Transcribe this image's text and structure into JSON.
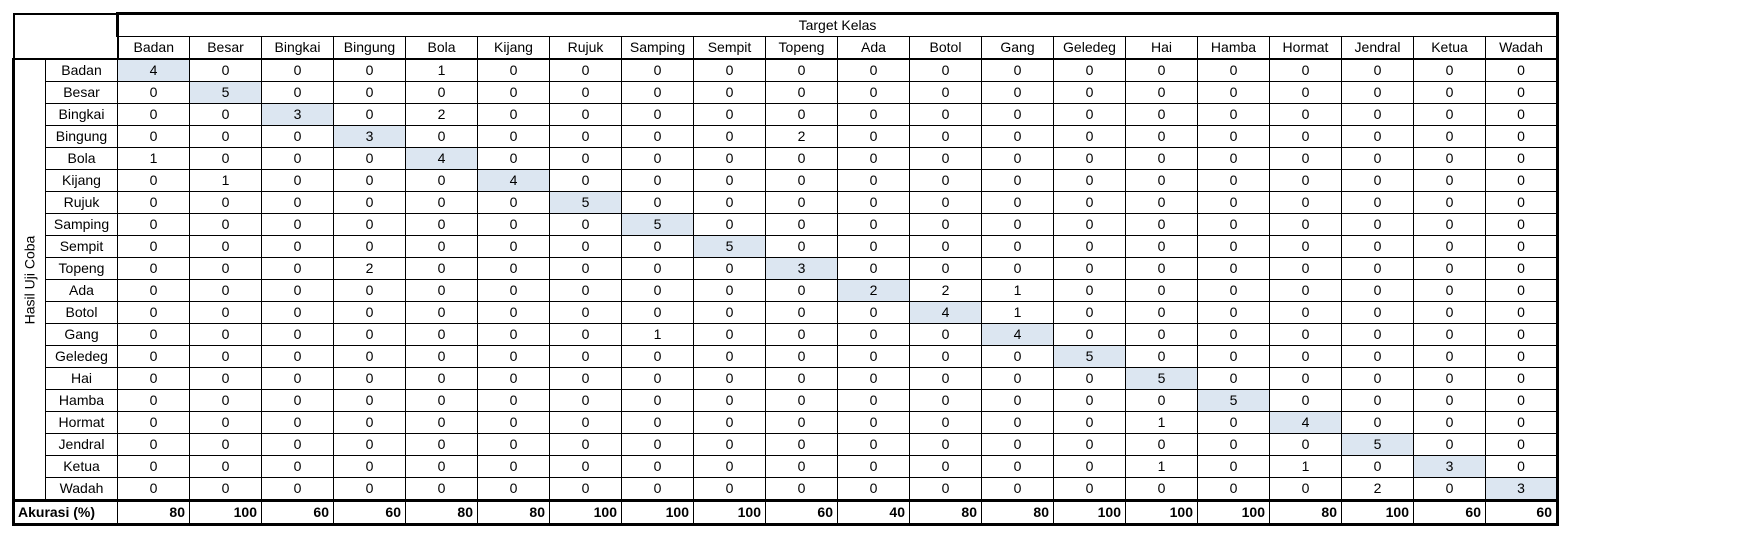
{
  "table": {
    "target_label": "Target Kelas",
    "row_group_label": "Hasil Uji Coba",
    "accuracy_label": "Akurasi (%)",
    "diagonal_color": "#dce6f1",
    "columns": [
      "Badan",
      "Besar",
      "Bingkai",
      "Bingung",
      "Bola",
      "Kijang",
      "Rujuk",
      "Samping",
      "Sempit",
      "Topeng",
      "Ada",
      "Botol",
      "Gang",
      "Geledeg",
      "Hai",
      "Hamba",
      "Hormat",
      "Jendral",
      "Ketua",
      "Wadah"
    ],
    "rows": [
      {
        "label": "Badan",
        "values": [
          "4",
          "0",
          "0",
          "0",
          "1",
          "0",
          "0",
          "0",
          "0",
          "0",
          "0",
          "0",
          "0",
          "0",
          "0",
          "0",
          "0",
          "0",
          "0",
          "0"
        ]
      },
      {
        "label": "Besar",
        "values": [
          "0",
          "5",
          "0",
          "0",
          "0",
          "0",
          "0",
          "0",
          "0",
          "0",
          "0",
          "0",
          "0",
          "0",
          "0",
          "0",
          "0",
          "0",
          "0",
          "0"
        ]
      },
      {
        "label": "Bingkai",
        "values": [
          "0",
          "0",
          "3",
          "0",
          "2",
          "0",
          "0",
          "0",
          "0",
          "0",
          "0",
          "0",
          "0",
          "0",
          "0",
          "0",
          "0",
          "0",
          "0",
          "0"
        ]
      },
      {
        "label": "Bingung",
        "values": [
          "0",
          "0",
          "0",
          "3",
          "0",
          "0",
          "0",
          "0",
          "0",
          "2",
          "0",
          "0",
          "0",
          "0",
          "0",
          "0",
          "0",
          "0",
          "0",
          "0"
        ]
      },
      {
        "label": "Bola",
        "values": [
          "1",
          "0",
          "0",
          "0",
          "4",
          "0",
          "0",
          "0",
          "0",
          "0",
          "0",
          "0",
          "0",
          "0",
          "0",
          "0",
          "0",
          "0",
          "0",
          "0"
        ]
      },
      {
        "label": "Kijang",
        "values": [
          "0",
          "1",
          "0",
          "0",
          "0",
          "4",
          "0",
          "0",
          "0",
          "0",
          "0",
          "0",
          "0",
          "0",
          "0",
          "0",
          "0",
          "0",
          "0",
          "0"
        ]
      },
      {
        "label": "Rujuk",
        "values": [
          "0",
          "0",
          "0",
          "0",
          "0",
          "0",
          "5",
          "0",
          "0",
          "0",
          "0",
          "0",
          "0",
          "0",
          "0",
          "0",
          "0",
          "0",
          "0",
          "0"
        ]
      },
      {
        "label": "Samping",
        "values": [
          "0",
          "0",
          "0",
          "0",
          "0",
          "0",
          "0",
          "5",
          "0",
          "0",
          "0",
          "0",
          "0",
          "0",
          "0",
          "0",
          "0",
          "0",
          "0",
          "0"
        ]
      },
      {
        "label": "Sempit",
        "values": [
          "0",
          "0",
          "0",
          "0",
          "0",
          "0",
          "0",
          "0",
          "5",
          "0",
          "0",
          "0",
          "0",
          "0",
          "0",
          "0",
          "0",
          "0",
          "0",
          "0"
        ]
      },
      {
        "label": "Topeng",
        "values": [
          "0",
          "0",
          "0",
          "2",
          "0",
          "0",
          "0",
          "0",
          "0",
          "3",
          "0",
          "0",
          "0",
          "0",
          "0",
          "0",
          "0",
          "0",
          "0",
          "0"
        ]
      },
      {
        "label": "Ada",
        "values": [
          "0",
          "0",
          "0",
          "0",
          "0",
          "0",
          "0",
          "0",
          "0",
          "0",
          "2",
          "2",
          "1",
          "0",
          "0",
          "0",
          "0",
          "0",
          "0",
          "0"
        ]
      },
      {
        "label": "Botol",
        "values": [
          "0",
          "0",
          "0",
          "0",
          "0",
          "0",
          "0",
          "0",
          "0",
          "0",
          "0",
          "4",
          "1",
          "0",
          "0",
          "0",
          "0",
          "0",
          "0",
          "0"
        ]
      },
      {
        "label": "Gang",
        "values": [
          "0",
          "0",
          "0",
          "0",
          "0",
          "0",
          "0",
          "1",
          "0",
          "0",
          "0",
          "0",
          "4",
          "0",
          "0",
          "0",
          "0",
          "0",
          "0",
          "0"
        ]
      },
      {
        "label": "Geledeg",
        "values": [
          "0",
          "0",
          "0",
          "0",
          "0",
          "0",
          "0",
          "0",
          "0",
          "0",
          "0",
          "0",
          "0",
          "5",
          "0",
          "0",
          "0",
          "0",
          "0",
          "0"
        ]
      },
      {
        "label": "Hai",
        "values": [
          "0",
          "0",
          "0",
          "0",
          "0",
          "0",
          "0",
          "0",
          "0",
          "0",
          "0",
          "0",
          "0",
          "0",
          "5",
          "0",
          "0",
          "0",
          "0",
          "0"
        ]
      },
      {
        "label": "Hamba",
        "values": [
          "0",
          "0",
          "0",
          "0",
          "0",
          "0",
          "0",
          "0",
          "0",
          "0",
          "0",
          "0",
          "0",
          "0",
          "0",
          "5",
          "0",
          "0",
          "0",
          "0"
        ]
      },
      {
        "label": "Hormat",
        "values": [
          "0",
          "0",
          "0",
          "0",
          "0",
          "0",
          "0",
          "0",
          "0",
          "0",
          "0",
          "0",
          "0",
          "0",
          "1",
          "0",
          "4",
          "0",
          "0",
          "0"
        ]
      },
      {
        "label": "Jendral",
        "values": [
          "0",
          "0",
          "0",
          "0",
          "0",
          "0",
          "0",
          "0",
          "0",
          "0",
          "0",
          "0",
          "0",
          "0",
          "0",
          "0",
          "0",
          "5",
          "0",
          "0"
        ]
      },
      {
        "label": "Ketua",
        "values": [
          "0",
          "0",
          "0",
          "0",
          "0",
          "0",
          "0",
          "0",
          "0",
          "0",
          "0",
          "0",
          "0",
          "0",
          "1",
          "0",
          "1",
          "0",
          "3",
          "0"
        ]
      },
      {
        "label": "Wadah",
        "values": [
          "0",
          "0",
          "0",
          "0",
          "0",
          "0",
          "0",
          "0",
          "0",
          "0",
          "0",
          "0",
          "0",
          "0",
          "0",
          "0",
          "0",
          "2",
          "0",
          "3"
        ]
      }
    ],
    "accuracy": [
      "80",
      "100",
      "60",
      "60",
      "80",
      "80",
      "100",
      "100",
      "100",
      "60",
      "40",
      "80",
      "80",
      "100",
      "100",
      "100",
      "80",
      "100",
      "60",
      "60"
    ]
  }
}
